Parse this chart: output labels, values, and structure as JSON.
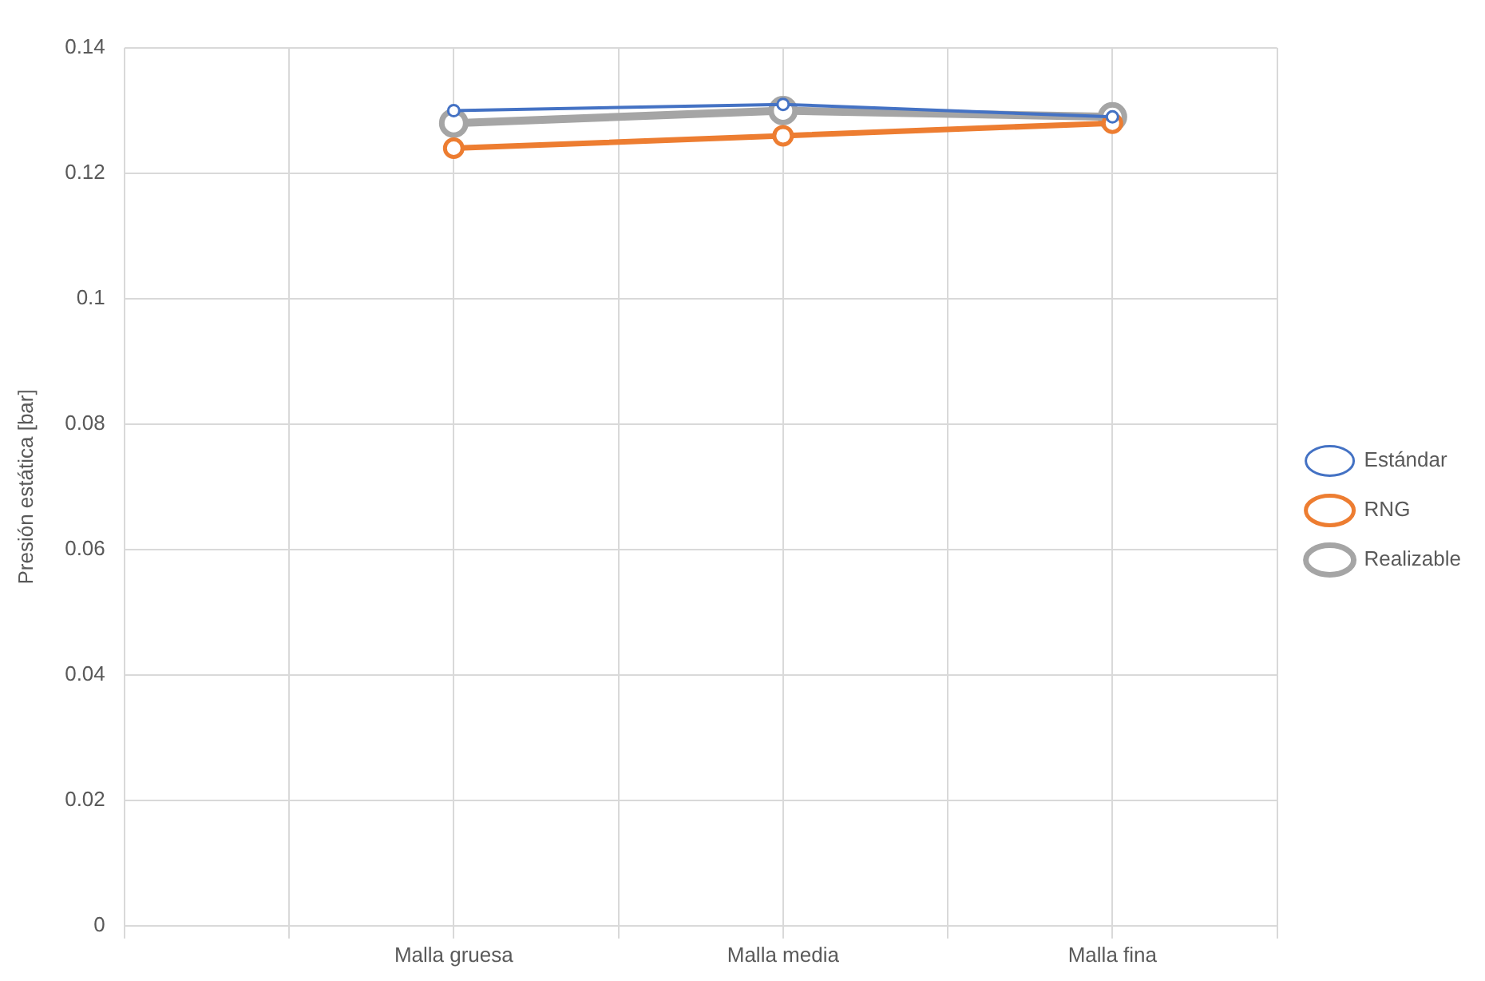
{
  "chart_data": {
    "type": "line",
    "ylabel": "Presión estática [bar]",
    "categories": [
      null,
      null,
      "Malla gruesa",
      null,
      "Malla media",
      null,
      "Malla fina",
      null
    ],
    "series": [
      {
        "name": "Estándar",
        "color": "#4472c4",
        "values": [
          null,
          null,
          0.13,
          null,
          0.131,
          null,
          0.129,
          null
        ]
      },
      {
        "name": "RNG",
        "color": "#ed7d31",
        "values": [
          null,
          null,
          0.124,
          null,
          0.126,
          null,
          0.128,
          null
        ]
      },
      {
        "name": "Realizable",
        "color": "#a5a5a5",
        "values": [
          null,
          null,
          0.128,
          null,
          0.13,
          null,
          0.129,
          null
        ]
      }
    ],
    "ylim": [
      0,
      0.14
    ],
    "yticks": [
      0,
      0.02,
      0.04,
      0.06,
      0.08,
      0.1,
      0.12,
      0.14
    ],
    "grid": true,
    "legend": "right",
    "marker": "circle",
    "line_style": "solid"
  }
}
